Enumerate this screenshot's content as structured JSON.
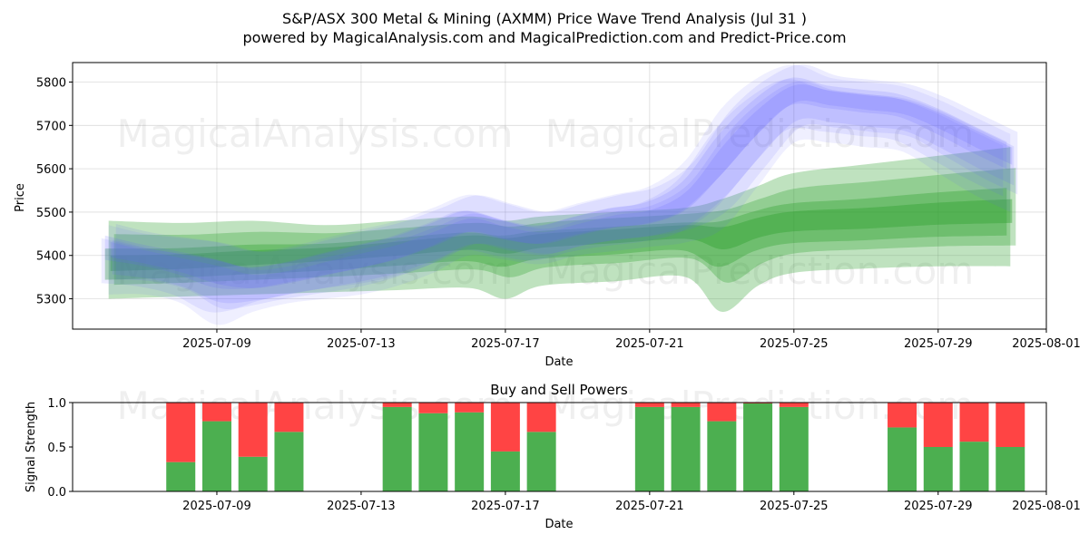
{
  "figure": {
    "title": "S&P/ASX 300 Metal & Mining (AXMM) Price Wave Trend Analysis (Jul 31 )",
    "subtitle": "powered by MagicalAnalysis.com and MagicalPrediction.com and Predict-Price.com",
    "watermarks": [
      "MagicalAnalysis.com",
      "MagicalPrediction.com"
    ],
    "colors": {
      "blue": "#6666ff",
      "green": "#2ca02c",
      "buy": "#4caf50",
      "sell": "#ff4444"
    }
  },
  "chart_data": [
    {
      "type": "area",
      "title": "",
      "xlabel": "Date",
      "ylabel": "Price",
      "xlim": [
        "2025-07-05",
        "2025-08-01"
      ],
      "ylim": [
        5230,
        5845
      ],
      "x_ticks": [
        "2025-07-09",
        "2025-07-13",
        "2025-07-17",
        "2025-07-21",
        "2025-07-25",
        "2025-07-29",
        "2025-08-01"
      ],
      "y_ticks": [
        5300,
        5400,
        5500,
        5600,
        5700,
        5800
      ],
      "grid": true,
      "series": [
        {
          "color": "blue",
          "x": [
            "2025-07-06",
            "2025-07-07",
            "2025-07-08",
            "2025-07-09",
            "2025-07-10",
            "2025-07-11",
            "2025-07-12",
            "2025-07-13",
            "2025-07-14",
            "2025-07-15",
            "2025-07-16",
            "2025-07-17",
            "2025-07-18",
            "2025-07-19",
            "2025-07-20",
            "2025-07-21",
            "2025-07-22",
            "2025-07-23",
            "2025-07-24",
            "2025-07-25",
            "2025-07-26",
            "2025-07-27",
            "2025-07-28",
            "2025-07-29",
            "2025-07-30",
            "2025-07-31"
          ],
          "center": [
            5420,
            5400,
            5380,
            5360,
            5340,
            5350,
            5370,
            5390,
            5410,
            5440,
            5470,
            5450,
            5440,
            5460,
            5480,
            5490,
            5530,
            5630,
            5720,
            5780,
            5770,
            5760,
            5750,
            5720,
            5680,
            5640
          ],
          "upper": [
            5470,
            5450,
            5440,
            5430,
            5410,
            5420,
            5440,
            5460,
            5480,
            5510,
            5540,
            5520,
            5500,
            5520,
            5540,
            5560,
            5620,
            5740,
            5810,
            5840,
            5810,
            5800,
            5790,
            5760,
            5720,
            5680
          ],
          "lower": [
            5310,
            5310,
            5290,
            5240,
            5270,
            5290,
            5300,
            5310,
            5330,
            5360,
            5400,
            5390,
            5380,
            5400,
            5410,
            5420,
            5430,
            5460,
            5560,
            5660,
            5660,
            5650,
            5640,
            5590,
            5540,
            5500
          ]
        },
        {
          "color": "green",
          "x": [
            "2025-07-06",
            "2025-07-08",
            "2025-07-10",
            "2025-07-12",
            "2025-07-14",
            "2025-07-16",
            "2025-07-17",
            "2025-07-18",
            "2025-07-20",
            "2025-07-22",
            "2025-07-23",
            "2025-07-24",
            "2025-07-25",
            "2025-07-27",
            "2025-07-29",
            "2025-07-31"
          ],
          "center": [
            5380,
            5385,
            5395,
            5405,
            5420,
            5435,
            5430,
            5440,
            5450,
            5460,
            5450,
            5470,
            5480,
            5485,
            5495,
            5500
          ],
          "upper": [
            5480,
            5475,
            5480,
            5470,
            5480,
            5490,
            5480,
            5490,
            5500,
            5510,
            5530,
            5560,
            5590,
            5610,
            5630,
            5650
          ],
          "lower": [
            5300,
            5305,
            5310,
            5315,
            5320,
            5325,
            5300,
            5330,
            5340,
            5350,
            5270,
            5330,
            5360,
            5370,
            5375,
            5375
          ]
        }
      ]
    },
    {
      "type": "bar",
      "title": "Buy and Sell Powers",
      "xlabel": "Date",
      "ylabel": "Signal Strength",
      "ylim": [
        0,
        1.0
      ],
      "y_ticks": [
        "0.0",
        "0.5",
        "1.0"
      ],
      "x_ticks": [
        "2025-07-09",
        "2025-07-13",
        "2025-07-17",
        "2025-07-21",
        "2025-07-25",
        "2025-07-29",
        "2025-08-01"
      ],
      "series": [
        {
          "name": "buy",
          "x": [
            "2025-07-08",
            "2025-07-09",
            "2025-07-10",
            "2025-07-11",
            "2025-07-14",
            "2025-07-15",
            "2025-07-16",
            "2025-07-17",
            "2025-07-18",
            "2025-07-21",
            "2025-07-22",
            "2025-07-23",
            "2025-07-24",
            "2025-07-25",
            "2025-07-28",
            "2025-07-29",
            "2025-07-30",
            "2025-07-31"
          ],
          "values": [
            0.33,
            0.79,
            0.39,
            0.67,
            0.95,
            0.88,
            0.89,
            0.45,
            0.67,
            0.95,
            0.95,
            0.79,
            0.99,
            0.95,
            0.72,
            0.5,
            0.56,
            0.5
          ]
        },
        {
          "name": "sell",
          "x": [
            "2025-07-08",
            "2025-07-09",
            "2025-07-10",
            "2025-07-11",
            "2025-07-14",
            "2025-07-15",
            "2025-07-16",
            "2025-07-17",
            "2025-07-18",
            "2025-07-21",
            "2025-07-22",
            "2025-07-23",
            "2025-07-24",
            "2025-07-25",
            "2025-07-28",
            "2025-07-29",
            "2025-07-30",
            "2025-07-31"
          ],
          "values": [
            0.67,
            0.21,
            0.61,
            0.33,
            0.05,
            0.12,
            0.11,
            0.55,
            0.33,
            0.05,
            0.05,
            0.21,
            0.01,
            0.05,
            0.28,
            0.5,
            0.44,
            0.5
          ]
        }
      ]
    }
  ]
}
